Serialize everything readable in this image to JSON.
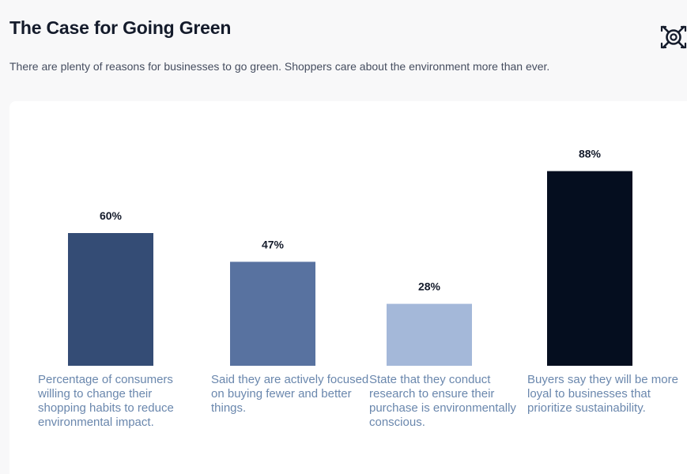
{
  "header": {
    "title": "The Case for Going Green",
    "subtitle": "There are plenty of reasons for businesses to go green. Shoppers care about the environment more than ever.",
    "logo_icon": "gear-circle-icon"
  },
  "colors": {
    "bar_1": "#344c75",
    "bar_2": "#5872a0",
    "bar_3": "#a4b8d9",
    "bar_4": "#050e1f",
    "description_text": "#6a87ad"
  },
  "chart_data": {
    "type": "bar",
    "categories": [
      "Percentage of consumers willing to change their shopping habits to reduce environmental impact.",
      "Said they are actively focused on buying fewer and better things.",
      "State that they conduct research to ensure their purchase is environmentally conscious.",
      "Buyers say they will be more loyal to businesses that prioritize sustainability."
    ],
    "values": [
      60,
      47,
      28,
      88
    ],
    "value_labels": [
      "60%",
      "47%",
      "28%",
      "88%"
    ],
    "title": "The Case for Going Green",
    "xlabel": "",
    "ylabel": "",
    "ylim": [
      0,
      100
    ],
    "grid": false
  }
}
